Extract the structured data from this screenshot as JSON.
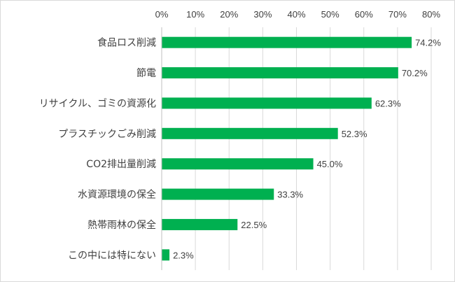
{
  "chart_data": {
    "type": "bar",
    "orientation": "horizontal",
    "categories": [
      "食品ロス削減",
      "節電",
      "リサイクル、ゴミの資源化",
      "プラスチックごみ削減",
      "CO2排出量削減",
      "水資源環境の保全",
      "熱帯雨林の保全",
      "この中には特にない"
    ],
    "values": [
      74.2,
      70.2,
      62.3,
      52.3,
      45.0,
      33.3,
      22.5,
      2.3
    ],
    "value_labels": [
      "74.2%",
      "70.2%",
      "62.3%",
      "52.3%",
      "45.0%",
      "33.3%",
      "22.5%",
      "2.3%"
    ],
    "xlim": [
      0,
      80
    ],
    "x_ticks": [
      0,
      10,
      20,
      30,
      40,
      50,
      60,
      70,
      80
    ],
    "x_tick_labels": [
      "0%",
      "10%",
      "20%",
      "30%",
      "40%",
      "50%",
      "60%",
      "70%",
      "80%"
    ],
    "x_axis_position": "top",
    "grid": true,
    "legend": "none",
    "bar_color": "#00b050"
  }
}
